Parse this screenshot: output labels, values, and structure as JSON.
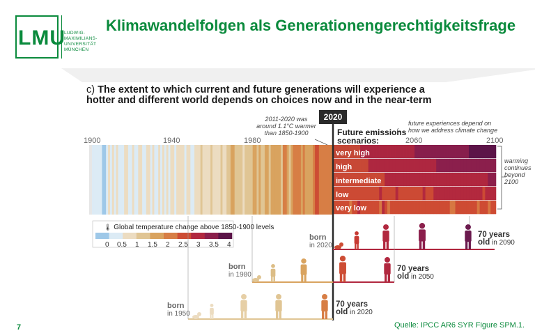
{
  "header": {
    "logo_text": "LMU",
    "university_lines": [
      "LUDWIG-",
      "MAXIMILIANS-",
      "UNIVERSITÄT",
      "MÜNCHEN"
    ],
    "title": "Klimawandelfolgen als Generationengerechtigkeitsfrage"
  },
  "figure": {
    "caption_label": "c)",
    "caption": "The extent to which current and future generations will experience a hotter and different world depends on choices now and in the near-term",
    "caption_line1": "The extent to which current and future generations will experience a",
    "caption_line2": "hotter and different world depends on choices now and in the near-term",
    "year_ticks": [
      "1900",
      "1940",
      "1980",
      "2060",
      "2100"
    ],
    "current_year": "2020",
    "annot_2011": [
      "2011-2020 was",
      "around 1.1°C warmer",
      "than 1850-1900"
    ],
    "future_label": [
      "Future emissions",
      "scenarios:"
    ],
    "future_note": [
      "future experiences depend on",
      "how we address climate change"
    ],
    "warming_note": [
      "warming",
      "continues",
      "beyond",
      "2100"
    ],
    "scenarios": [
      "very high",
      "high",
      "intermediate",
      "low",
      "very low"
    ],
    "scenario_colors": [
      "#6b1a4e",
      "#8c1f4a",
      "#a7243f",
      "#bf3237",
      "#cf4430"
    ],
    "legend": {
      "title": "Global temperature change above 1850-1900 levels",
      "unit_icon": "thermometer-icon",
      "ticks": [
        "0",
        "0.5",
        "1",
        "1.5",
        "2",
        "2.5",
        "3",
        "3.5",
        "4"
      ],
      "colors": [
        "#9ec8e8",
        "#dcebf5",
        "#ecdcc1",
        "#e0c594",
        "#d9a35f",
        "#d77e45",
        "#cd4d34",
        "#b1283f",
        "#8b1f4c",
        "#5b1448"
      ]
    },
    "generations": [
      {
        "born_word": "born",
        "born_year": "in 2020",
        "age_text": "70 years",
        "old_word": "old",
        "old_year": "in 2090"
      },
      {
        "born_word": "born",
        "born_year": "in 1980",
        "age_text": "70 years",
        "old_word": "old",
        "old_year": "in 2050"
      },
      {
        "born_word": "born",
        "born_year": "in 1950",
        "age_text": "70 years",
        "old_word": "old",
        "old_year": "in 2020"
      }
    ]
  },
  "footer": {
    "page_number": "7",
    "source": "Quelle: IPCC AR6 SYR Figure SPM.1."
  }
}
